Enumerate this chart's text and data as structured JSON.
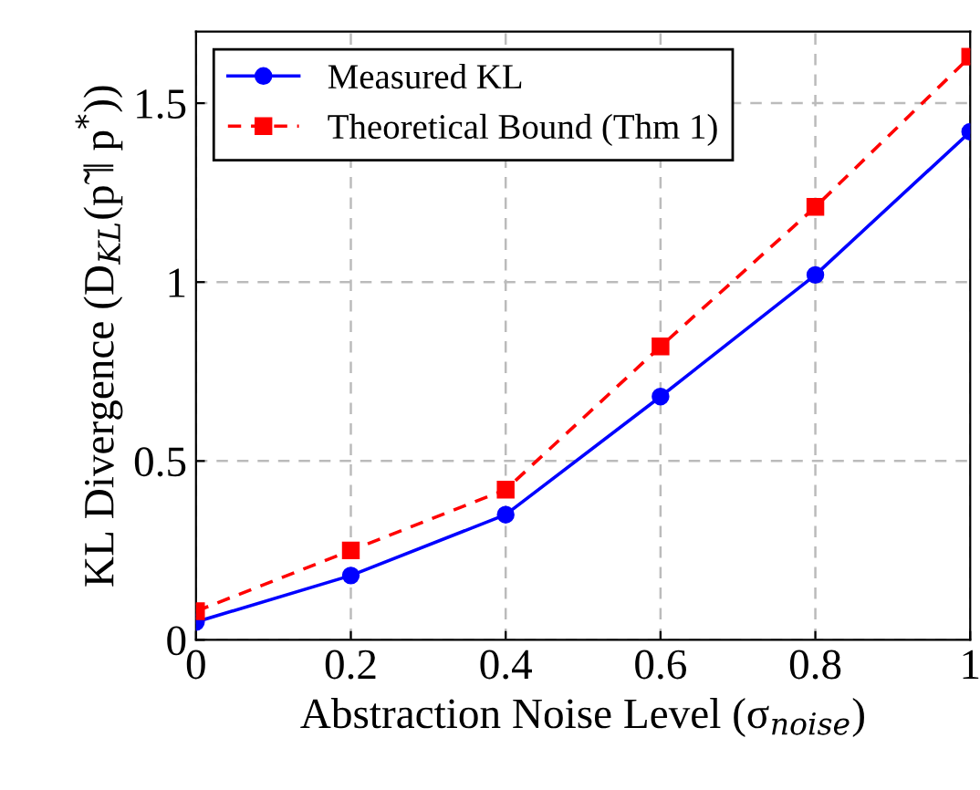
{
  "chart_data": {
    "type": "line",
    "xlabel": "Abstraction Noise Level (σ$_{noise}$)",
    "ylabel": "KL Divergence (D$_{KL}$(p̃ ‖ p$^{*}$))",
    "x": [
      0,
      0.2,
      0.4,
      0.6,
      0.8,
      1
    ],
    "series": [
      {
        "name": "Measured KL",
        "color": "#0000ff",
        "values": [
          0.05,
          0.18,
          0.35,
          0.68,
          1.02,
          1.42
        ],
        "marker": "circle",
        "line_style": "solid"
      },
      {
        "name": "Theoretical Bound (Thm 1)",
        "color": "#ff0000",
        "values": [
          0.08,
          0.25,
          0.42,
          0.82,
          1.21,
          1.63
        ],
        "marker": "square",
        "line_style": "dashed"
      }
    ],
    "xlim": [
      0,
      1
    ],
    "ylim": [
      0,
      1.7
    ],
    "xticks": [
      0,
      0.2,
      0.4,
      0.6,
      0.8,
      1
    ],
    "yticks": [
      0,
      0.5,
      1,
      1.5
    ],
    "grid": true,
    "legend": "top left"
  }
}
